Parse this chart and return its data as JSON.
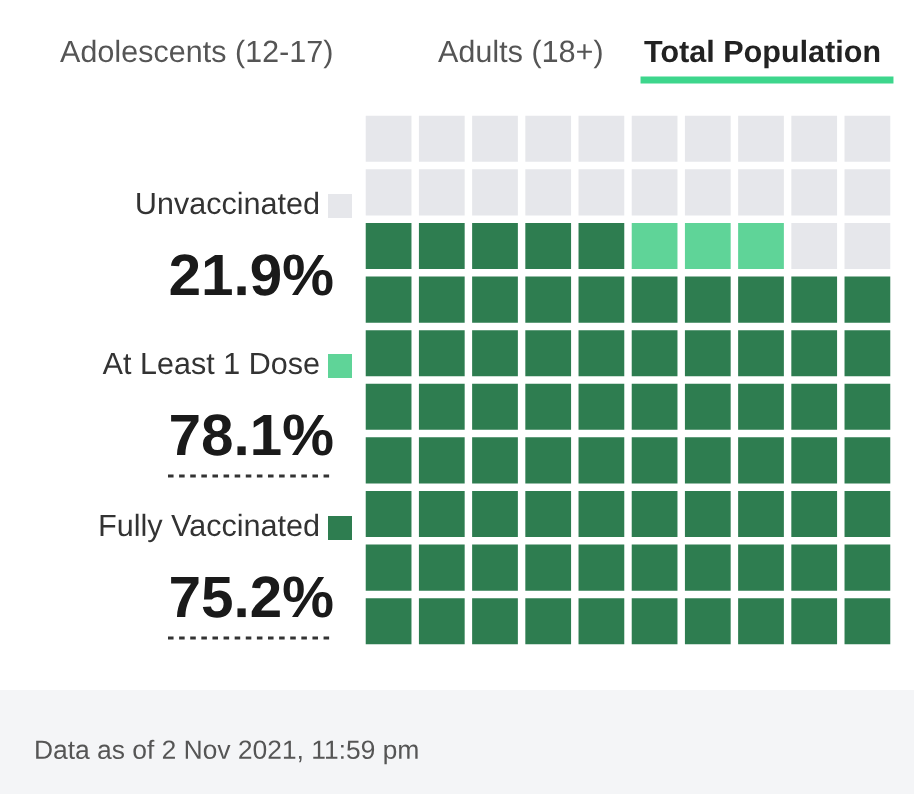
{
  "chart_data": {
    "type": "other",
    "categories": [
      "Unvaccinated",
      "At Least 1 Dose",
      "Fully Vaccinated"
    ],
    "values": [
      21.9,
      78.1,
      75.2
    ],
    "value_labels": [
      "21.9%",
      "78.1%",
      "75.2%"
    ],
    "colors": [
      "#e6e7eb",
      "#5fd498",
      "#2e7d50"
    ],
    "annotations": [
      "Adolescents (12-17)",
      "Adults (18+)",
      "Total Population",
      "Data as of 2 Nov 2021, 11:59 pm"
    ]
  }
}
